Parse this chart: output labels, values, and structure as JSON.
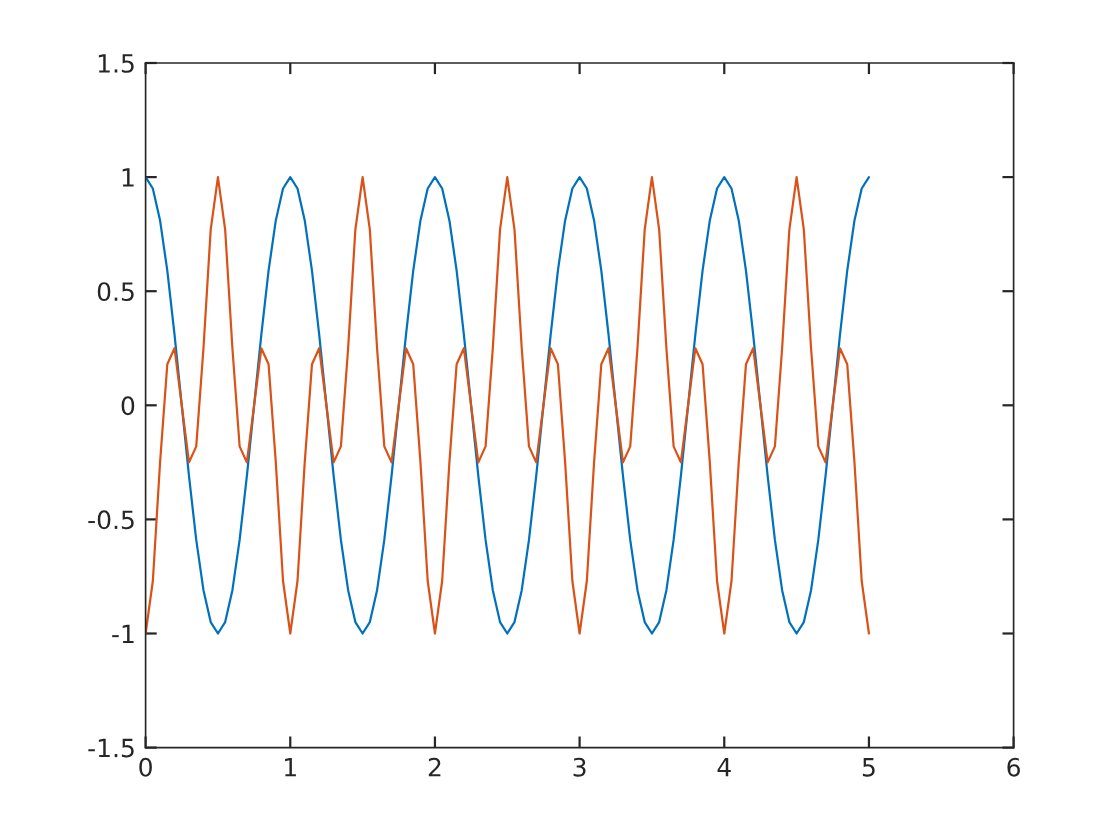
{
  "chart_data": {
    "type": "line",
    "x": [
      0,
      0.05,
      0.1,
      0.15,
      0.2,
      0.25,
      0.3,
      0.35,
      0.4,
      0.45,
      0.5,
      0.55,
      0.6,
      0.65,
      0.7,
      0.75,
      0.8,
      0.85,
      0.9,
      0.95,
      1,
      1.05,
      1.1,
      1.15,
      1.2,
      1.25,
      1.3,
      1.35,
      1.4,
      1.45,
      1.5,
      1.55,
      1.6,
      1.65,
      1.7,
      1.75,
      1.8,
      1.85,
      1.9,
      1.95,
      2,
      2.05,
      2.1,
      2.15,
      2.2,
      2.25,
      2.3,
      2.35,
      2.4,
      2.45,
      2.5,
      2.55,
      2.6,
      2.65,
      2.7,
      2.75,
      2.8,
      2.85,
      2.9,
      2.95,
      3,
      3.05,
      3.1,
      3.15,
      3.2,
      3.25,
      3.3,
      3.35,
      3.4,
      3.45,
      3.5,
      3.55,
      3.6,
      3.65,
      3.7,
      3.75,
      3.8,
      3.85,
      3.9,
      3.95,
      4,
      4.05,
      4.1,
      4.15,
      4.2,
      4.25,
      4.3,
      4.35,
      4.4,
      4.45,
      4.5,
      4.55,
      4.6,
      4.65,
      4.7,
      4.75,
      4.8,
      4.85,
      4.9,
      4.95,
      5
    ],
    "series": [
      {
        "color": "#0072bd",
        "values": [
          1,
          0.95,
          0.81,
          0.59,
          0.31,
          0,
          -0.31,
          -0.59,
          -0.81,
          -0.95,
          -1,
          -0.95,
          -0.81,
          -0.59,
          -0.31,
          0,
          0.31,
          0.59,
          0.81,
          0.95,
          1,
          0.95,
          0.81,
          0.59,
          0.31,
          0,
          -0.31,
          -0.59,
          -0.81,
          -0.95,
          -1,
          -0.95,
          -0.81,
          -0.59,
          -0.31,
          0,
          0.31,
          0.59,
          0.81,
          0.95,
          1,
          0.95,
          0.81,
          0.59,
          0.31,
          0,
          -0.31,
          -0.59,
          -0.81,
          -0.95,
          -1,
          -0.95,
          -0.81,
          -0.59,
          -0.31,
          0,
          0.31,
          0.59,
          0.81,
          0.95,
          1,
          0.95,
          0.81,
          0.59,
          0.31,
          0,
          -0.31,
          -0.59,
          -0.81,
          -0.95,
          -1,
          -0.95,
          -0.81,
          -0.59,
          -0.31,
          0,
          0.31,
          0.59,
          0.81,
          0.95,
          1,
          0.95,
          0.81,
          0.59,
          0.31,
          0,
          -0.31,
          -0.59,
          -0.81,
          -0.95,
          -1,
          -0.95,
          -0.81,
          -0.59,
          -0.31,
          0,
          0.31,
          0.59,
          0.81,
          0.95,
          1
        ]
      },
      {
        "color": "#d95319",
        "values": [
          -1,
          -0.77,
          -0.25,
          0.18,
          0.25,
          0,
          -0.25,
          -0.18,
          0.25,
          0.77,
          1,
          0.77,
          0.25,
          -0.18,
          -0.25,
          0,
          0.25,
          0.18,
          -0.25,
          -0.77,
          -1,
          -0.77,
          -0.25,
          0.18,
          0.25,
          0,
          -0.25,
          -0.18,
          0.25,
          0.77,
          1,
          0.77,
          0.25,
          -0.18,
          -0.25,
          0,
          0.25,
          0.18,
          -0.25,
          -0.77,
          -1,
          -0.77,
          -0.25,
          0.18,
          0.25,
          0,
          -0.25,
          -0.18,
          0.25,
          0.77,
          1,
          0.77,
          0.25,
          -0.18,
          -0.25,
          0,
          0.25,
          0.18,
          -0.25,
          -0.77,
          -1,
          -0.77,
          -0.25,
          0.18,
          0.25,
          0,
          -0.25,
          -0.18,
          0.25,
          0.77,
          1,
          0.77,
          0.25,
          -0.18,
          -0.25,
          0,
          0.25,
          0.18,
          -0.25,
          -0.77,
          -1,
          -0.77,
          -0.25,
          0.18,
          0.25,
          0,
          -0.25,
          -0.18,
          0.25,
          0.77,
          1,
          0.77,
          0.25,
          -0.18,
          -0.25,
          0,
          0.25,
          0.18,
          -0.25,
          -0.77,
          -1
        ]
      }
    ],
    "xlim": [
      0,
      6
    ],
    "xticks": [
      0,
      1,
      2,
      3,
      4,
      5,
      6
    ],
    "ylim": [
      -1.5,
      1.5
    ],
    "yticks": [
      -1.5,
      -1,
      -0.5,
      0,
      0.5,
      1,
      1.5
    ],
    "grid": false,
    "legend": false
  }
}
